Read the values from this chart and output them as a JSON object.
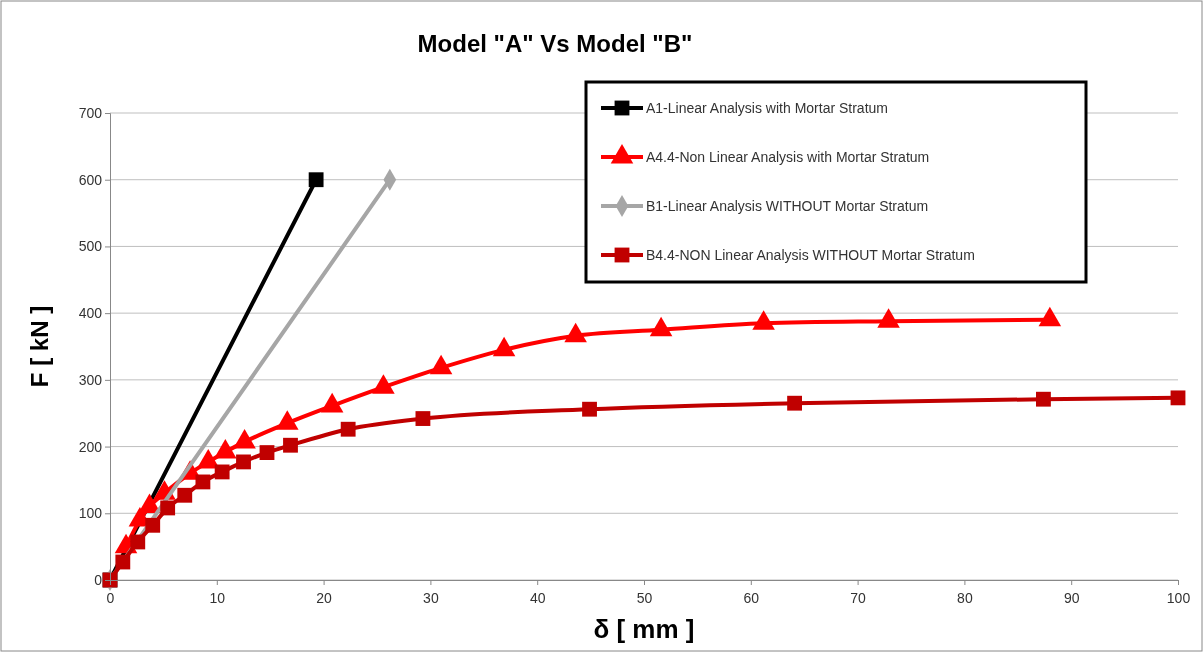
{
  "chart_data": {
    "type": "line",
    "title": "Model \"A\" Vs Model \"B\"",
    "xlabel": "δ [ mm ]",
    "ylabel": "F [ kN ]",
    "xlim": [
      0,
      100
    ],
    "xticks": [
      0,
      10,
      20,
      30,
      40,
      50,
      60,
      70,
      80,
      90,
      100
    ],
    "ylim": [
      0,
      700
    ],
    "yticks": [
      0,
      100,
      200,
      300,
      400,
      500,
      600,
      700
    ],
    "grid": "y",
    "legend": "top right",
    "series": [
      {
        "name": "A1-Linear Analysis with Mortar Stratum",
        "color": "#000000",
        "marker": "square",
        "x": [
          0,
          19.3
        ],
        "values": [
          0,
          600
        ]
      },
      {
        "name": "A4.4-Non Linear Analysis with Mortar Stratum",
        "color": "#ff0000",
        "marker": "triangle",
        "x": [
          1.5,
          2.8,
          3.7,
          5.1,
          7.5,
          9.2,
          10.8,
          12.6,
          16.6,
          20.8,
          25.6,
          31,
          36.9,
          43.6,
          51.6,
          61.2,
          72.9,
          88
        ],
        "values": [
          50,
          90,
          110,
          130,
          160,
          177,
          192,
          207,
          235,
          261,
          289,
          318,
          345,
          366,
          375,
          385,
          388,
          390
        ]
      },
      {
        "name": "B1-Linear Analysis WITHOUT Mortar Stratum",
        "color": "#a6a6a6",
        "marker": "diamond",
        "x": [
          0,
          26.2
        ],
        "values": [
          0,
          600
        ]
      },
      {
        "name": "B4.4-NON Linear Analysis WITHOUT Mortar Stratum",
        "color": "#c00000",
        "marker": "square",
        "x": [
          0,
          1.2,
          2.6,
          4,
          5.4,
          7,
          8.7,
          10.5,
          12.5,
          14.7,
          16.9,
          22.3,
          29.3,
          44.9,
          64.1,
          87.4,
          100
        ],
        "values": [
          0,
          27,
          57,
          82,
          108,
          127,
          147,
          162,
          177,
          191,
          202,
          226,
          242,
          256,
          265,
          271,
          273
        ]
      }
    ]
  }
}
